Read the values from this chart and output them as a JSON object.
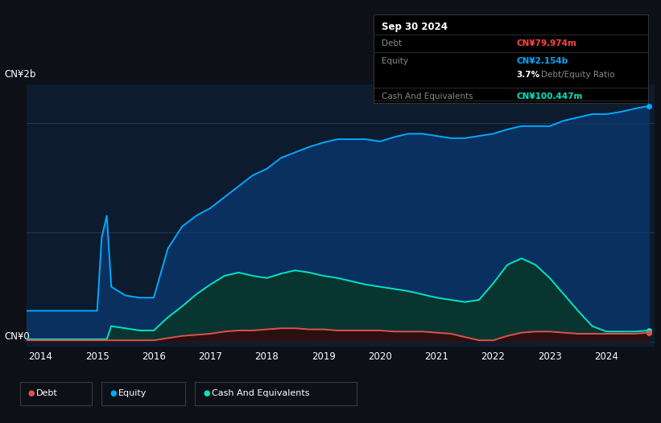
{
  "bg_color": "#0d1117",
  "plot_bg_color": "#0d1b2e",
  "equity_color": "#00aaff",
  "equity_fill": "#0a3060",
  "cash_color": "#00e5c0",
  "cash_fill": "#083530",
  "debt_color": "#e05050",
  "debt_fill": "#2a1010",
  "grid_color": "#1e3a5f",
  "x_labels": [
    "2014",
    "2015",
    "2016",
    "2017",
    "2018",
    "2019",
    "2020",
    "2021",
    "2022",
    "2023",
    "2024"
  ],
  "ylabel_top": "CN¥2b",
  "ylabel_bottom": "CN¥0",
  "time_points": [
    2013.75,
    2014.0,
    2014.25,
    2014.5,
    2014.75,
    2015.0,
    2015.08,
    2015.17,
    2015.25,
    2015.5,
    2015.75,
    2016.0,
    2016.25,
    2016.5,
    2016.75,
    2017.0,
    2017.25,
    2017.5,
    2017.75,
    2018.0,
    2018.25,
    2018.5,
    2018.75,
    2019.0,
    2019.25,
    2019.5,
    2019.75,
    2020.0,
    2020.25,
    2020.5,
    2020.75,
    2021.0,
    2021.25,
    2021.5,
    2021.75,
    2022.0,
    2022.25,
    2022.5,
    2022.75,
    2023.0,
    2023.25,
    2023.5,
    2023.75,
    2024.0,
    2024.25,
    2024.5,
    2024.75
  ],
  "equity": [
    0.28,
    0.28,
    0.28,
    0.28,
    0.28,
    0.28,
    0.95,
    1.15,
    0.5,
    0.42,
    0.4,
    0.4,
    0.85,
    1.05,
    1.15,
    1.22,
    1.32,
    1.42,
    1.52,
    1.58,
    1.68,
    1.73,
    1.78,
    1.82,
    1.85,
    1.85,
    1.85,
    1.83,
    1.87,
    1.9,
    1.9,
    1.88,
    1.86,
    1.86,
    1.88,
    1.9,
    1.94,
    1.97,
    1.97,
    1.97,
    2.02,
    2.05,
    2.08,
    2.08,
    2.1,
    2.13,
    2.154
  ],
  "cash": [
    0.02,
    0.02,
    0.02,
    0.02,
    0.02,
    0.02,
    0.02,
    0.02,
    0.14,
    0.12,
    0.1,
    0.1,
    0.22,
    0.32,
    0.43,
    0.52,
    0.6,
    0.63,
    0.6,
    0.58,
    0.62,
    0.65,
    0.63,
    0.6,
    0.58,
    0.55,
    0.52,
    0.5,
    0.48,
    0.46,
    0.43,
    0.4,
    0.38,
    0.36,
    0.38,
    0.53,
    0.7,
    0.76,
    0.7,
    0.58,
    0.43,
    0.28,
    0.14,
    0.09,
    0.09,
    0.09,
    0.1
  ],
  "debt": [
    0.01,
    0.01,
    0.01,
    0.01,
    0.01,
    0.01,
    0.01,
    0.01,
    0.01,
    0.01,
    0.01,
    0.01,
    0.03,
    0.05,
    0.06,
    0.07,
    0.09,
    0.1,
    0.1,
    0.11,
    0.12,
    0.12,
    0.11,
    0.11,
    0.1,
    0.1,
    0.1,
    0.1,
    0.09,
    0.09,
    0.09,
    0.08,
    0.07,
    0.04,
    0.01,
    0.01,
    0.05,
    0.08,
    0.09,
    0.09,
    0.08,
    0.07,
    0.07,
    0.07,
    0.07,
    0.07,
    0.08
  ],
  "tooltip": {
    "date": "Sep 30 2024",
    "debt_label": "Debt",
    "debt_value": "CN¥79.974m",
    "equity_label": "Equity",
    "equity_value": "CN¥2.154b",
    "ratio_value": "3.7%",
    "ratio_label": "Debt/Equity Ratio",
    "cash_label": "Cash And Equivalents",
    "cash_value": "CN¥100.447m"
  },
  "legend_items": [
    {
      "color": "#e05050",
      "label": "Debt"
    },
    {
      "color": "#00aaff",
      "label": "Equity"
    },
    {
      "color": "#00e5c0",
      "label": "Cash And Equivalents"
    }
  ]
}
